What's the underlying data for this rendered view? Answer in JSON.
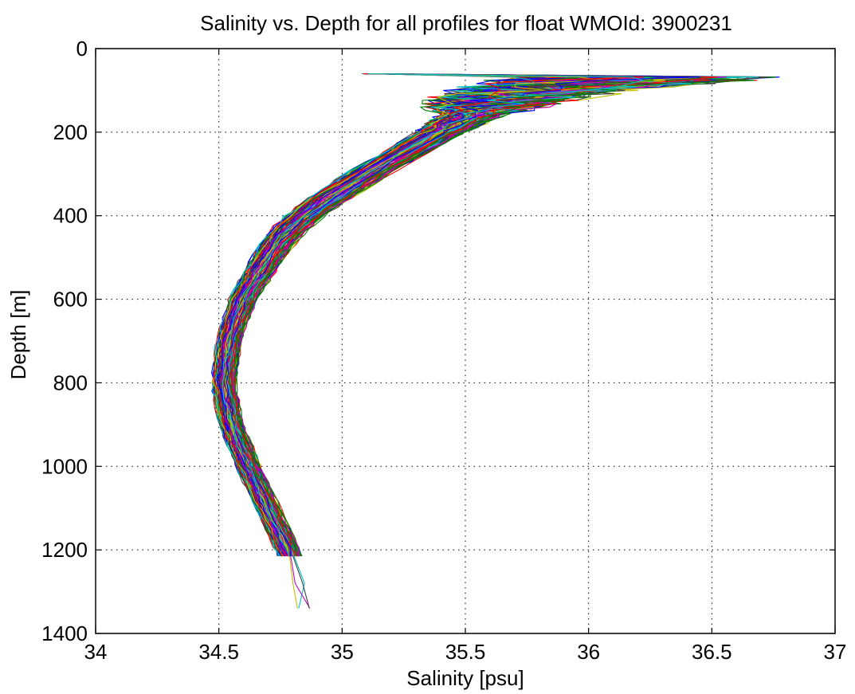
{
  "chart_data": {
    "type": "line",
    "title": "Salinity vs. Depth for all profiles for float WMOId: 3900231",
    "xlabel": "Salinity [psu]",
    "ylabel": "Depth [m]",
    "xlim": [
      34,
      37
    ],
    "ylim": [
      0,
      1400
    ],
    "y_reversed": true,
    "grid": true,
    "grid_style": "dotted",
    "xticks": [
      34,
      34.5,
      35,
      35.5,
      36,
      36.5,
      37
    ],
    "xtick_labels": [
      "34",
      "34.5",
      "35",
      "35.5",
      "36",
      "36.5",
      "37"
    ],
    "yticks": [
      0,
      200,
      400,
      600,
      800,
      1000,
      1200,
      1400
    ],
    "ytick_labels": [
      "0",
      "200",
      "400",
      "600",
      "800",
      "1000",
      "1200",
      "1400"
    ],
    "series_count": 130,
    "series_colors": [
      "#0000ff",
      "#008000",
      "#ff0000",
      "#00bfbf",
      "#bf00bf",
      "#bfbf00",
      "#404040"
    ],
    "mean_profile": {
      "depth": [
        60,
        80,
        100,
        120,
        150,
        200,
        250,
        300,
        350,
        400,
        450,
        500,
        600,
        700,
        800,
        900,
        1000,
        1100,
        1150,
        1215
      ],
      "salinity": [
        36.35,
        36.05,
        35.8,
        35.65,
        35.55,
        35.4,
        35.25,
        35.1,
        34.97,
        34.85,
        34.76,
        34.7,
        34.6,
        34.54,
        34.52,
        34.55,
        34.62,
        34.7,
        34.74,
        34.79
      ]
    },
    "profile_spread_psu": {
      "depth": [
        60,
        80,
        100,
        120,
        150,
        200,
        250,
        300,
        350,
        400,
        450,
        500,
        600,
        700,
        800,
        900,
        1000,
        1100,
        1150,
        1215
      ],
      "halfwidth": [
        0.45,
        0.4,
        0.3,
        0.25,
        0.18,
        0.12,
        0.11,
        0.11,
        0.11,
        0.1,
        0.09,
        0.08,
        0.07,
        0.06,
        0.06,
        0.06,
        0.06,
        0.06,
        0.06,
        0.06
      ]
    },
    "deep_profile": {
      "depth": [
        1215,
        1280,
        1340
      ],
      "salinity": [
        34.79,
        34.82,
        34.84
      ]
    }
  }
}
